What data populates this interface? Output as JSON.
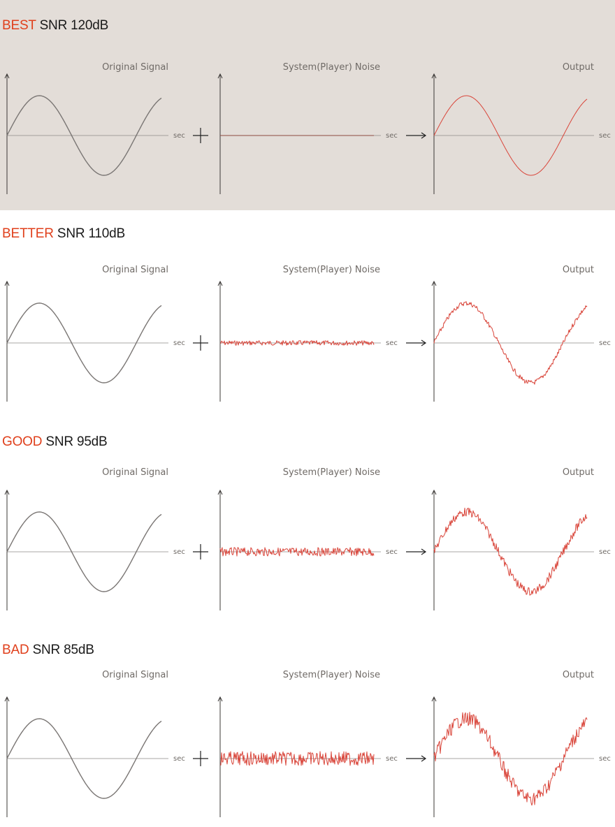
{
  "labels": {
    "original": "Original Signal",
    "noise": "System(Player) Noise",
    "output": "Output",
    "axis_unit": "sec"
  },
  "colors": {
    "grade": "#e0401c",
    "signal": "#7a7674",
    "noise": "#d9453a",
    "axis": "#3b3836",
    "highlight_bg": "#e3ddd8"
  },
  "sections": [
    {
      "grade": "BEST",
      "snr": "SNR 120dB",
      "noise_level": 0.0,
      "highlighted": true
    },
    {
      "grade": "BETTER",
      "snr": "SNR 110dB",
      "noise_level": 0.25,
      "highlighted": false
    },
    {
      "grade": "GOOD",
      "snr": "SNR 95dB",
      "noise_level": 0.55,
      "highlighted": false
    },
    {
      "grade": "BAD",
      "snr": "SNR 85dB",
      "noise_level": 1.0,
      "highlighted": false
    }
  ]
}
